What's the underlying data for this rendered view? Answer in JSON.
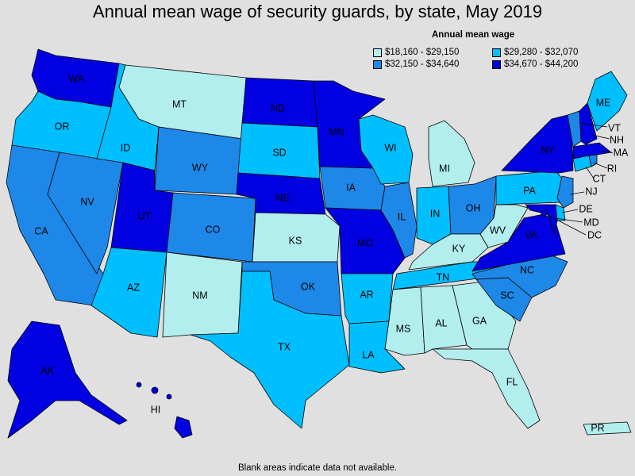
{
  "title": "Annual mean wage of security guards, by state, May 2019",
  "legend": {
    "title": "Annual mean wage",
    "bins": [
      {
        "label": "$18,160 - $29,150",
        "color": "#b3eeee"
      },
      {
        "label": "$29,280 - $32,070",
        "color": "#00bfff"
      },
      {
        "label": "$32,150 - $34,640",
        "color": "#1e88e8"
      },
      {
        "label": "$34,670 - $44,200",
        "color": "#0000e0"
      }
    ]
  },
  "footnote": "Blank areas indicate data not available.",
  "states": {
    "WA": 3,
    "OR": 1,
    "CA": 2,
    "NV": 2,
    "ID": 1,
    "MT": 0,
    "WY": 2,
    "UT": 3,
    "AZ": 1,
    "CO": 2,
    "NM": 0,
    "ND": 3,
    "SD": 1,
    "NE": 3,
    "KS": 0,
    "OK": 2,
    "TX": 1,
    "MN": 3,
    "IA": 2,
    "MO": 3,
    "AR": 1,
    "LA": 1,
    "WI": 1,
    "IL": 2,
    "MI": 0,
    "IN": 1,
    "OH": 2,
    "KY": 0,
    "TN": 1,
    "MS": 0,
    "AL": 0,
    "GA": 0,
    "FL": 0,
    "SC": 2,
    "NC": 2,
    "VA": 3,
    "WV": 0,
    "PA": 1,
    "NY": 3,
    "ME": 1,
    "VT": 2,
    "NH": 3,
    "MA": 3,
    "RI": 2,
    "CT": 1,
    "NJ": 2,
    "DE": 1,
    "MD": 3,
    "DC": 3,
    "AK": 3,
    "HI": 3,
    "PR": 0
  }
}
